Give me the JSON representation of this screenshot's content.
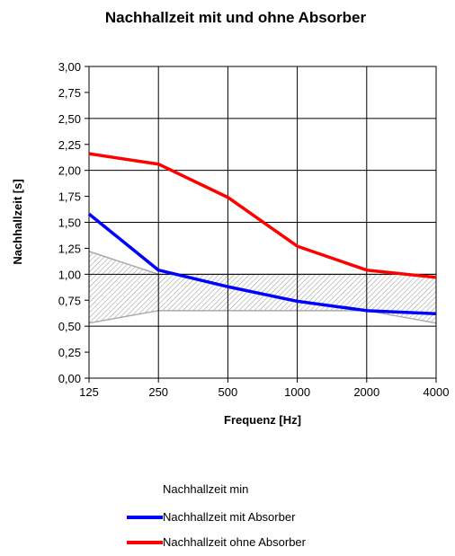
{
  "chart_data": {
    "type": "line",
    "title": "Nachhallzeit mit und ohne Absorber",
    "xlabel": "Frequenz [Hz]",
    "ylabel": "Nachhallzeit [s]",
    "categories": [
      "125",
      "250",
      "500",
      "1000",
      "2000",
      "4000"
    ],
    "ylim": [
      0,
      3
    ],
    "yticks": [
      "0,00",
      "0,25",
      "0,50",
      "0,75",
      "1,00",
      "1,25",
      "1,50",
      "1,75",
      "2,00",
      "2,25",
      "2,50",
      "2,75",
      "3,00"
    ],
    "grid": true,
    "band": {
      "name": "Nachhallzeit min",
      "upper": [
        1.22,
        1.0,
        1.0,
        1.0,
        1.0,
        1.0
      ],
      "lower": [
        0.53,
        0.65,
        0.65,
        0.65,
        0.65,
        0.53
      ],
      "color": "#aaaaaa"
    },
    "series": [
      {
        "name": "Nachhallzeit mit Absorber",
        "color": "#0000ff",
        "values": [
          1.58,
          1.04,
          0.88,
          0.74,
          0.65,
          0.62
        ]
      },
      {
        "name": "Nachhallzeit ohne Absorber",
        "color": "#ff0000",
        "values": [
          2.16,
          2.06,
          1.74,
          1.27,
          1.04,
          0.97
        ]
      }
    ],
    "legend_position": "bottom"
  }
}
